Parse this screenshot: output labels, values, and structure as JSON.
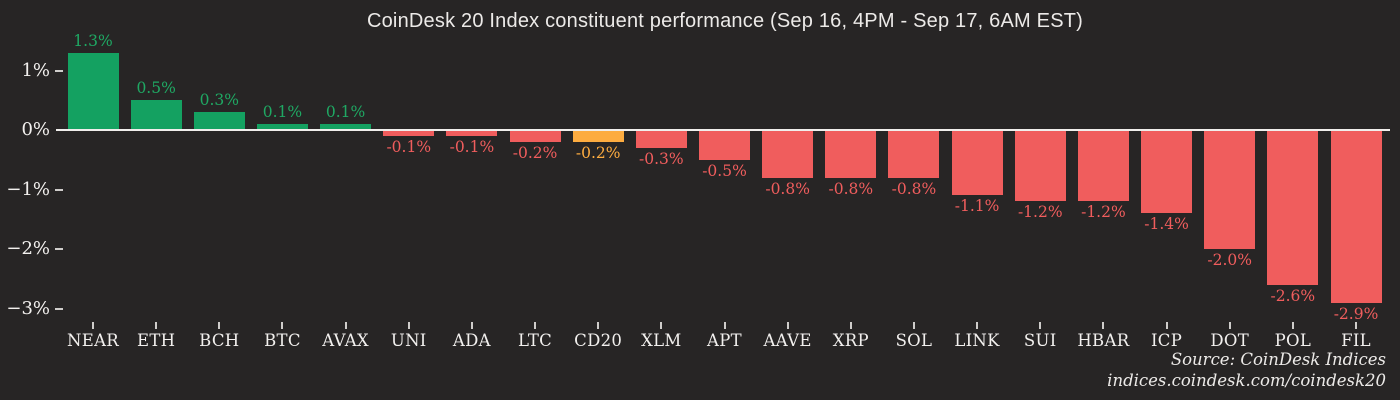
{
  "palette": {
    "background": "#272525",
    "text": "#f2f0ee",
    "title_text": "#eceae8",
    "tick": "#cfcdcb",
    "zero_line": "#f0eeec",
    "positive": "#14a161",
    "positive_label": "#1fa863",
    "negative": "#f05d5d",
    "negative_label": "#f05d5d",
    "highlight": "#fdac40"
  },
  "chart_data": {
    "type": "bar",
    "title": "CoinDesk 20 Index constituent performance (Sep 16, 4PM - Sep 17, 6AM EST)",
    "categories": [
      "NEAR",
      "ETH",
      "BCH",
      "BTC",
      "AVAX",
      "UNI",
      "ADA",
      "LTC",
      "CD20",
      "XLM",
      "APT",
      "AAVE",
      "XRP",
      "SOL",
      "LINK",
      "SUI",
      "HBAR",
      "ICP",
      "DOT",
      "POL",
      "FIL"
    ],
    "values": [
      1.3,
      0.5,
      0.3,
      0.1,
      0.1,
      -0.1,
      -0.1,
      -0.2,
      -0.2,
      -0.3,
      -0.5,
      -0.8,
      -0.8,
      -0.8,
      -1.1,
      -1.2,
      -1.2,
      -1.4,
      -2.0,
      -2.6,
      -2.9
    ],
    "value_labels": [
      "1.3%",
      "0.5%",
      "0.3%",
      "0.1%",
      "0.1%",
      "-0.1%",
      "-0.1%",
      "-0.2%",
      "-0.2%",
      "-0.3%",
      "-0.5%",
      "-0.8%",
      "-0.8%",
      "-0.8%",
      "-1.1%",
      "-1.2%",
      "-1.2%",
      "-1.4%",
      "-2.0%",
      "-2.6%",
      "-2.9%"
    ],
    "highlight_category": "CD20",
    "yticks": [
      {
        "label": "1%",
        "value": 1
      },
      {
        "label": "0%",
        "value": 0
      },
      {
        "label": "−1%",
        "value": -1
      },
      {
        "label": "−2%",
        "value": -2
      },
      {
        "label": "−3%",
        "value": -3
      }
    ],
    "ylim": [
      -3.3,
      1.5
    ],
    "xlabel": "",
    "ylabel": "",
    "grid": false,
    "legend": false
  },
  "source": {
    "line1": "Source: CoinDesk Indices",
    "line2": "indices.coindesk.com/coindesk20"
  }
}
